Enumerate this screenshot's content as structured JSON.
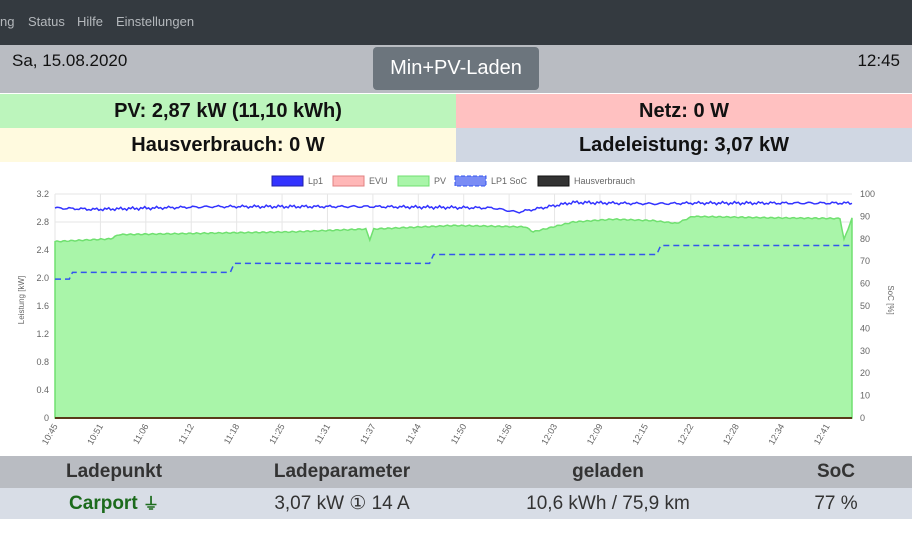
{
  "nav": {
    "items": [
      "ng",
      "Status",
      "Hilfe",
      "Einstellungen"
    ]
  },
  "header": {
    "date": "Sa, 15.08.2020",
    "time": "12:45",
    "mode_button": "Min+PV-Laden"
  },
  "info": {
    "pv": "PV: 2,87 kW (11,10 kWh)",
    "netz": "Netz: 0 W",
    "hausverbrauch": "Hausverbrauch: 0 W",
    "ladeleistung": "Ladeleistung: 3,07 kW"
  },
  "colors": {
    "pv_green": "#bcf5bc",
    "netz_red": "#ffc1c1",
    "haus_yellow": "#fffadf",
    "lade_blue": "#d0d7e3",
    "navbar": "#343a40",
    "lp1_blue": "#3333ff",
    "pv_fill": "#a9f5a9",
    "pv_line": "#70e070"
  },
  "chart_data": {
    "type": "area",
    "legend": [
      "Lp1",
      "EVU",
      "PV",
      "LP1 SoC",
      "Hausverbrauch"
    ],
    "legend_position": "top",
    "ylabel": "Leistung [kW]",
    "y2label": "SoC [%]",
    "ylim": [
      0,
      3.2
    ],
    "y2lim": [
      0,
      100
    ],
    "y_ticks": [
      "0",
      "0.4",
      "0.8",
      "1.2",
      "1.6",
      "2.0",
      "2.4",
      "2.8",
      "3.2"
    ],
    "y2_ticks": [
      "0",
      "10",
      "20",
      "30",
      "40",
      "50",
      "60",
      "70",
      "80",
      "90",
      "100"
    ],
    "x_ticks": [
      "10:45",
      "10:51",
      "11:06",
      "11:12",
      "11:18",
      "11:25",
      "11:31",
      "11:37",
      "11:44",
      "11:50",
      "11:56",
      "12:03",
      "12:09",
      "12:15",
      "12:22",
      "12:28",
      "12:34",
      "12:41"
    ],
    "grid": true,
    "series": [
      {
        "name": "PV",
        "x": [
          0,
          0.07,
          0.08,
          0.3,
          0.39,
          0.395,
          0.4,
          0.5,
          0.55,
          0.59,
          0.6,
          0.65,
          0.7,
          0.75,
          0.78,
          0.8,
          0.9,
          0.985,
          0.99,
          1
        ],
        "values": [
          2.52,
          2.56,
          2.62,
          2.66,
          2.7,
          2.55,
          2.7,
          2.75,
          2.74,
          2.73,
          2.66,
          2.8,
          2.84,
          2.82,
          2.78,
          2.88,
          2.86,
          2.85,
          2.55,
          2.85
        ]
      },
      {
        "name": "Lp1",
        "x": [
          0,
          0.05,
          0.2,
          0.4,
          0.55,
          0.58,
          0.6,
          0.65,
          0.75,
          0.8,
          0.9,
          1
        ],
        "values": [
          3.0,
          2.98,
          3.02,
          3.02,
          3.0,
          2.94,
          2.98,
          3.08,
          3.06,
          3.07,
          3.07,
          3.07
        ]
      },
      {
        "name": "LP1 SoC",
        "x": [
          0,
          0.018,
          0.022,
          0.22,
          0.225,
          0.47,
          0.475,
          0.755,
          0.76,
          1
        ],
        "values": [
          62,
          62,
          65,
          65,
          69,
          69,
          73,
          73,
          77,
          77
        ]
      }
    ]
  },
  "table": {
    "headers": [
      "Ladepunkt",
      "Ladeparameter",
      "geladen",
      "SoC"
    ],
    "row": {
      "ladepunkt": "Carport",
      "plug_icon": "⏚",
      "ladeparameter": "3,07 kW ① 14 A",
      "geladen": "10,6 kWh / 75,9 km",
      "soc": "77 %"
    }
  }
}
